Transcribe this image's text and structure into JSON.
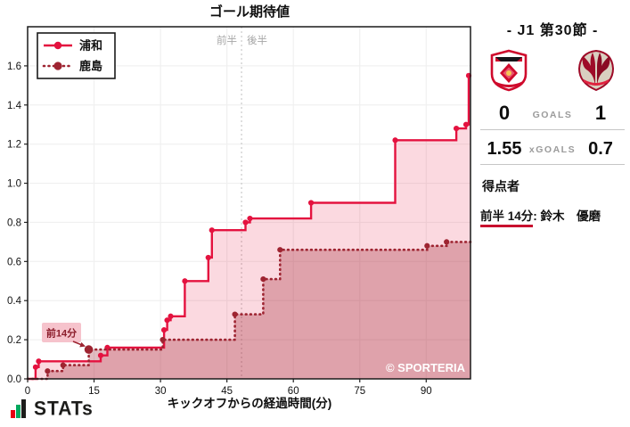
{
  "chart_data": {
    "type": "line",
    "subtype": "step-after-cumulative-xg",
    "title": "ゴール期待値",
    "xlabel": "キックオフからの経過時間(分)",
    "ylabel": "",
    "xlim": [
      0,
      100
    ],
    "ylim": [
      0,
      1.8
    ],
    "xticks": [
      0,
      15,
      30,
      45,
      60,
      75,
      90
    ],
    "yticks": [
      0.0,
      0.2,
      0.4,
      0.6,
      0.8,
      1.0,
      1.2,
      1.4,
      1.6
    ],
    "grid": true,
    "halftime_x": 48.3,
    "half_labels": {
      "first_half": "前半",
      "second_half": "後半"
    },
    "annotation": {
      "label": "前14分",
      "x": 13.8,
      "y": 0.15
    },
    "watermark": "© SPORTERIA",
    "legend_position": "top-left",
    "series": [
      {
        "name": "浦和",
        "style": "solid",
        "color": "#e4123f",
        "fill": "rgba(228,18,63,0.16)",
        "final_xg": 1.55,
        "points": [
          [
            0,
            0
          ],
          [
            1.8,
            0.06
          ],
          [
            2.5,
            0.09
          ],
          [
            16.5,
            0.12
          ],
          [
            18,
            0.16
          ],
          [
            30.8,
            0.25
          ],
          [
            31.5,
            0.3
          ],
          [
            32.3,
            0.32
          ],
          [
            35.5,
            0.5
          ],
          [
            40.8,
            0.62
          ],
          [
            41.6,
            0.76
          ],
          [
            49.2,
            0.8
          ],
          [
            50.2,
            0.82
          ],
          [
            64,
            0.9
          ],
          [
            83,
            1.22
          ],
          [
            96.8,
            1.28
          ],
          [
            99,
            1.3
          ],
          [
            99.6,
            1.55
          ]
        ]
      },
      {
        "name": "鹿島",
        "style": "dotted",
        "color": "#9e2431",
        "fill": "rgba(158,36,49,0.30)",
        "final_xg": 0.7,
        "goal_point": [
          13.8,
          0.15
        ],
        "points": [
          [
            0,
            0
          ],
          [
            4.5,
            0.04
          ],
          [
            8,
            0.07
          ],
          [
            13.8,
            0.15
          ],
          [
            30.5,
            0.2
          ],
          [
            46.8,
            0.33
          ],
          [
            53.2,
            0.51
          ],
          [
            57,
            0.66
          ],
          [
            90.2,
            0.68
          ],
          [
            94.6,
            0.7
          ]
        ]
      }
    ]
  },
  "panel": {
    "title": "- J1 第30節 -",
    "home_team": "浦和",
    "away_team": "鹿島",
    "goals": {
      "home": "0",
      "label": "GOALS",
      "away": "1"
    },
    "xgoals": {
      "home": "1.55",
      "label": "xGOALS",
      "away": "0.7"
    },
    "scorers_heading": "得点者",
    "scorer": {
      "time": "前半 14分",
      "separator": ":",
      "name": "鈴木　優磨"
    },
    "accent_red": "#c8102e",
    "label_gray": "#9b9b9b"
  },
  "footer": {
    "logo_text": "STATs"
  }
}
